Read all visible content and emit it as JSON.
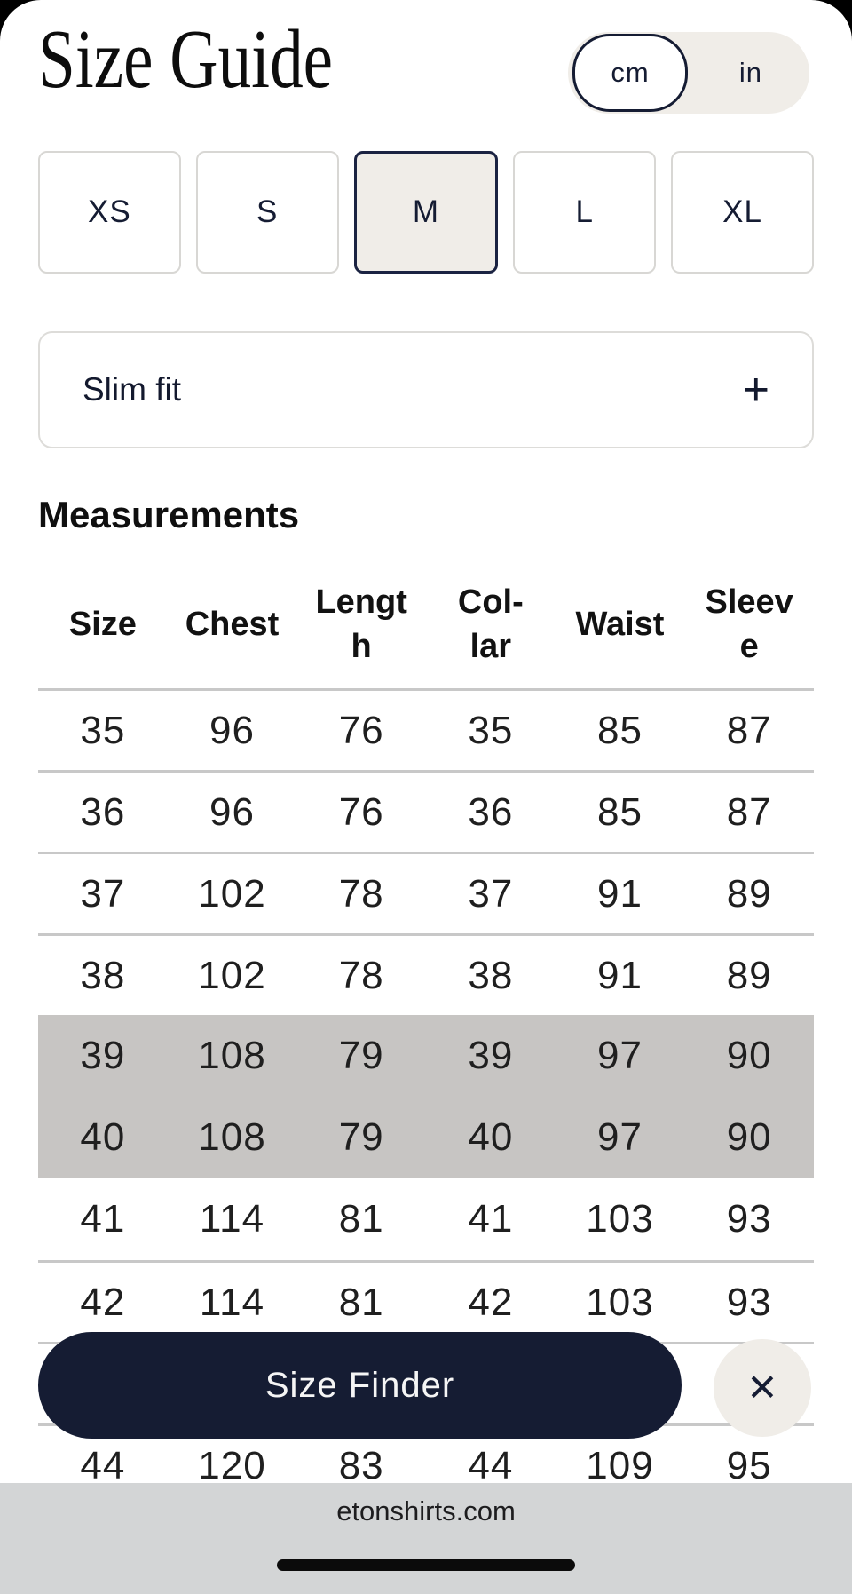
{
  "header": {
    "title": "Size Guide"
  },
  "unit_toggle": {
    "options": [
      {
        "label": "cm",
        "selected": true
      },
      {
        "label": "in",
        "selected": false
      }
    ]
  },
  "size_selector": {
    "sizes": [
      {
        "label": "XS",
        "selected": false
      },
      {
        "label": "S",
        "selected": false
      },
      {
        "label": "M",
        "selected": true
      },
      {
        "label": "L",
        "selected": false
      },
      {
        "label": "XL",
        "selected": false
      }
    ]
  },
  "fit_accordion": {
    "label": "Slim fit",
    "expand_icon": "+"
  },
  "measurements": {
    "heading": "Measurements",
    "table": {
      "columns": [
        "Size",
        "Chest",
        "Lengt\nh",
        "Col-\nlar",
        "Waist",
        "Sleev\ne"
      ],
      "rows": [
        {
          "cells": [
            "35",
            "96",
            "76",
            "35",
            "85",
            "87"
          ],
          "highlighted": false,
          "obscured": false
        },
        {
          "cells": [
            "36",
            "96",
            "76",
            "36",
            "85",
            "87"
          ],
          "highlighted": false,
          "obscured": false
        },
        {
          "cells": [
            "37",
            "102",
            "78",
            "37",
            "91",
            "89"
          ],
          "highlighted": false,
          "obscured": false
        },
        {
          "cells": [
            "38",
            "102",
            "78",
            "38",
            "91",
            "89"
          ],
          "highlighted": false,
          "obscured": false
        },
        {
          "cells": [
            "39",
            "108",
            "79",
            "39",
            "97",
            "90"
          ],
          "highlighted": true,
          "obscured": false
        },
        {
          "cells": [
            "40",
            "108",
            "79",
            "40",
            "97",
            "90"
          ],
          "highlighted": true,
          "obscured": false
        },
        {
          "cells": [
            "41",
            "114",
            "81",
            "41",
            "103",
            "93"
          ],
          "highlighted": false,
          "obscured": false
        },
        {
          "cells": [
            "42",
            "114",
            "81",
            "42",
            "103",
            "93"
          ],
          "highlighted": false,
          "obscured": false
        },
        {
          "cells": [
            "",
            "",
            "",
            "",
            "",
            ""
          ],
          "highlighted": false,
          "obscured": true
        },
        {
          "cells": [
            "44",
            "120",
            "83",
            "44",
            "109",
            "95"
          ],
          "highlighted": false,
          "obscured": false
        }
      ]
    }
  },
  "size_finder_button": {
    "label": "Size Finder"
  },
  "close_button": {
    "icon": "✕"
  },
  "browser_bar": {
    "url": "etonshirts.com"
  },
  "colors": {
    "navy": "#151c33",
    "navy-border": "#1b2342",
    "soft": "#f0ede8",
    "btn-border": "#d8d7d4",
    "divider": "#c8c8c8",
    "highlight": "#c7c5c3",
    "chrome": "#d3d5d6"
  }
}
